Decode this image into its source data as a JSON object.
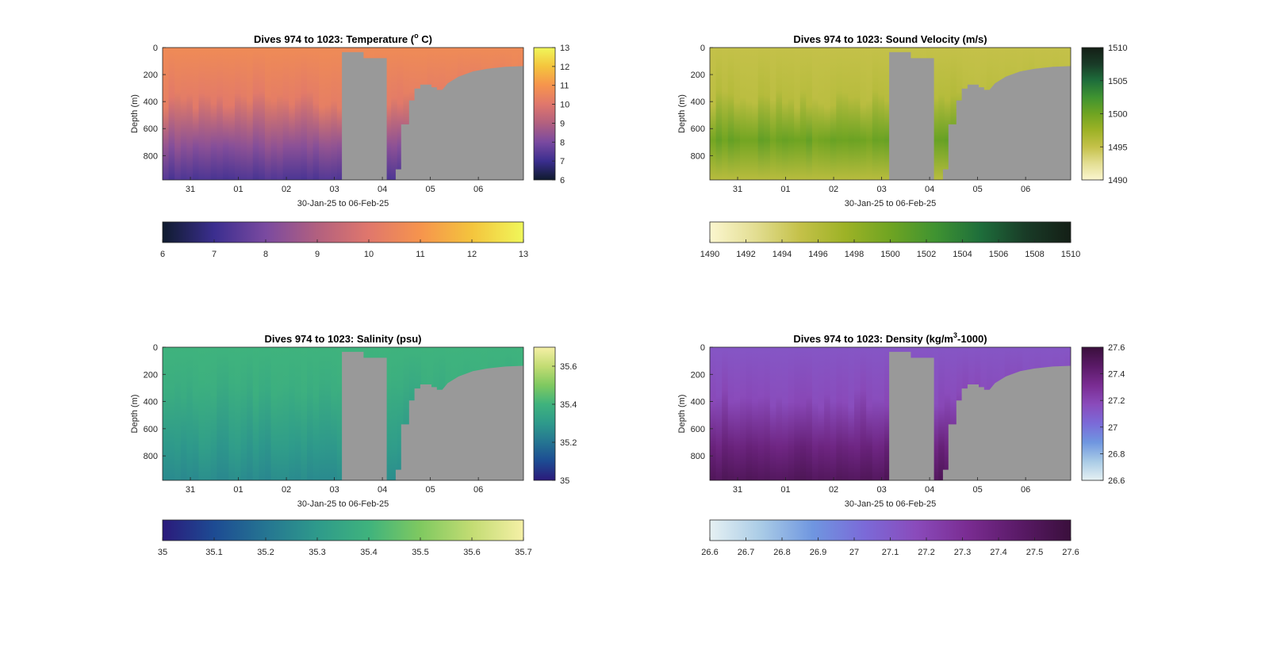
{
  "chart_data": [
    {
      "type": "heatmap",
      "title": "Dives 974 to 1023: Temperature (",
      "title_sup": "o",
      "title_suffix": " C)",
      "ylabel": "Depth (m)",
      "xlabel": "30-Jan-25 to 06-Feb-25",
      "x_ticks": [
        "31",
        "01",
        "02",
        "03",
        "04",
        "05",
        "06"
      ],
      "y_ticks": [
        "0",
        "200",
        "400",
        "600",
        "800"
      ],
      "ylim": [
        0,
        980
      ],
      "y_reversed": true,
      "colorbar_right_ticks": [
        "13",
        "12",
        "11",
        "10",
        "9",
        "8",
        "7",
        "6"
      ],
      "colorbar_bottom_ticks": [
        "6",
        "7",
        "8",
        "9",
        "10",
        "11",
        "12",
        "13"
      ],
      "clim": [
        6,
        13
      ],
      "colormap": [
        "#0f1b2e",
        "#3b2e8f",
        "#7a4aa0",
        "#b2607f",
        "#e0776c",
        "#f6944d",
        "#f4c43d",
        "#f0f75a"
      ],
      "surface_value": 10.7,
      "deep_value": 7.3,
      "transition_depth_m": 380,
      "no_data_color": "#999999"
    },
    {
      "type": "heatmap",
      "title": "Dives 974 to 1023: Sound Velocity (m/s)",
      "ylabel": "Depth (m)",
      "xlabel": "30-Jan-25 to 06-Feb-25",
      "x_ticks": [
        "31",
        "01",
        "02",
        "03",
        "04",
        "05",
        "06"
      ],
      "y_ticks": [
        "0",
        "200",
        "400",
        "600",
        "800"
      ],
      "ylim": [
        0,
        980
      ],
      "y_reversed": true,
      "colorbar_right_ticks": [
        "1510",
        "1505",
        "1500",
        "1495",
        "1490"
      ],
      "colorbar_bottom_ticks": [
        "1490",
        "1492",
        "1494",
        "1496",
        "1498",
        "1500",
        "1502",
        "1504",
        "1506",
        "1508",
        "1510"
      ],
      "clim": [
        1490,
        1510
      ],
      "colormap": [
        "#fbf6cf",
        "#e3de93",
        "#c4c149",
        "#9db226",
        "#6fa422",
        "#3f9331",
        "#1e6e3b",
        "#193b27",
        "#141f16"
      ],
      "surface_value": 1495.0,
      "deep_value": 1500.2,
      "bottom_value": 1495.8,
      "transition_depth_m": 380,
      "no_data_color": "#999999"
    },
    {
      "type": "heatmap",
      "title": "Dives 974 to 1023: Salinity (psu)",
      "ylabel": "Depth (m)",
      "xlabel": "30-Jan-25 to 06-Feb-25",
      "x_ticks": [
        "31",
        "01",
        "02",
        "03",
        "04",
        "05",
        "06"
      ],
      "y_ticks": [
        "0",
        "200",
        "400",
        "600",
        "800"
      ],
      "ylim": [
        0,
        980
      ],
      "y_reversed": true,
      "colorbar_right_ticks": [
        "35.6",
        "35.4",
        "35.2",
        "35"
      ],
      "colorbar_bottom_ticks": [
        "35",
        "35.1",
        "35.2",
        "35.3",
        "35.4",
        "35.5",
        "35.6",
        "35.7"
      ],
      "clim": [
        35,
        35.7
      ],
      "colormap": [
        "#2b1a7b",
        "#1d4b93",
        "#257592",
        "#2e9a8b",
        "#3fb37d",
        "#7fc960",
        "#c3dc73",
        "#f5f0a6"
      ],
      "surface_value": 35.4,
      "deep_value": 35.26,
      "transition_depth_m": 300,
      "no_data_color": "#999999"
    },
    {
      "type": "heatmap",
      "title": "Dives 974 to 1023: Density (kg/m",
      "title_sup": "3",
      "title_suffix": "-1000)",
      "ylabel": "Depth (m)",
      "xlabel": "30-Jan-25 to 06-Feb-25",
      "x_ticks": [
        "31",
        "01",
        "02",
        "03",
        "04",
        "05",
        "06"
      ],
      "y_ticks": [
        "0",
        "200",
        "400",
        "600",
        "800"
      ],
      "ylim": [
        0,
        980
      ],
      "y_reversed": true,
      "colorbar_right_ticks": [
        "27.6",
        "27.4",
        "27.2",
        "27",
        "26.8",
        "26.6"
      ],
      "colorbar_bottom_ticks": [
        "26.6",
        "26.7",
        "26.8",
        "26.9",
        "27",
        "27.1",
        "27.2",
        "27.3",
        "27.4",
        "27.5",
        "27.6"
      ],
      "clim": [
        26.6,
        27.6
      ],
      "colormap": [
        "#e6f1f3",
        "#a9cbe6",
        "#6f96e0",
        "#7b6ad8",
        "#8a4bbb",
        "#7a2c92",
        "#5a1a67",
        "#3a0f3c"
      ],
      "surface_value": 27.12,
      "deep_value": 27.5,
      "transition_depth_m": 380,
      "no_data_color": "#999999"
    }
  ]
}
